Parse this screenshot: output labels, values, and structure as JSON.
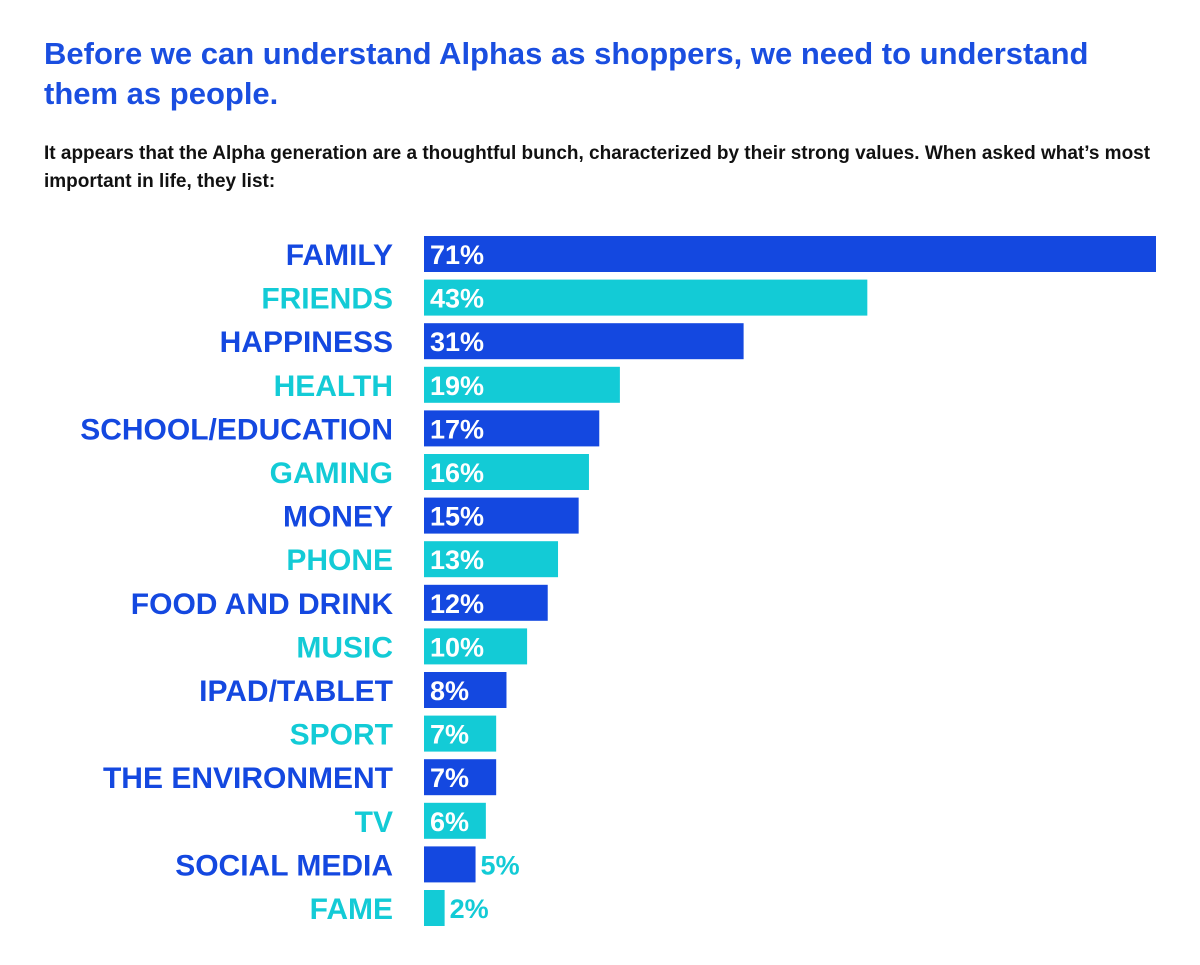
{
  "header": {
    "title": "Before we can understand Alphas as shoppers, we need to understand them as people.",
    "subtitle": "It appears that the Alpha generation are a thoughtful bunch, characterized by their strong values. When asked what’s most important in life, they list:"
  },
  "colors": {
    "primary": "#1448e0",
    "secondary": "#13cbd6",
    "label_outside": "#13cbd6",
    "bar_text": "#ffffff"
  },
  "chart_data": {
    "type": "bar",
    "orientation": "horizontal",
    "categories": [
      "FAMILY",
      "FRIENDS",
      "HAPPINESS",
      "HEALTH",
      "SCHOOL/EDUCATION",
      "GAMING",
      "MONEY",
      "PHONE",
      "FOOD AND DRINK",
      "MUSIC",
      "IPAD/TABLET",
      "SPORT",
      "THE ENVIRONMENT",
      "TV",
      "SOCIAL MEDIA",
      "FAME"
    ],
    "values": [
      71,
      43,
      31,
      19,
      17,
      16,
      15,
      13,
      12,
      10,
      8,
      7,
      7,
      6,
      5,
      2
    ],
    "value_labels": [
      "71%",
      "43%",
      "31%",
      "19%",
      "17%",
      "16%",
      "15%",
      "13%",
      "12%",
      "10%",
      "8%",
      "7%",
      "7%",
      "6%",
      "5%",
      "2%"
    ],
    "unit": "%",
    "xlim": [
      0,
      71
    ],
    "grid": false,
    "legend": "none"
  }
}
